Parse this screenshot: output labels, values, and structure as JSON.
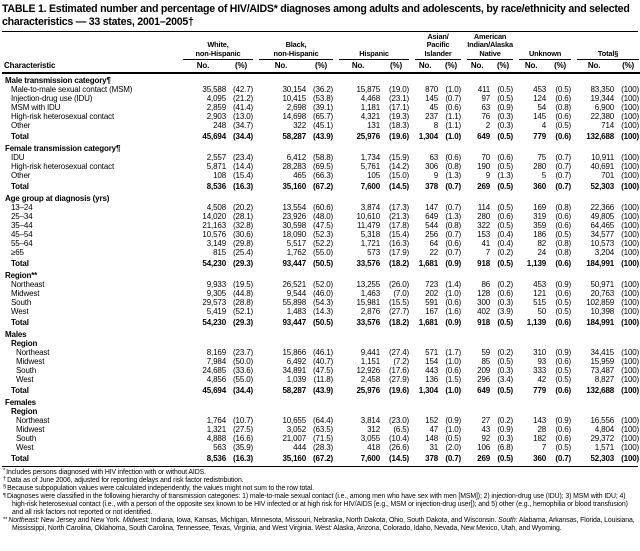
{
  "title": "TABLE 1. Estimated number and percentage of HIV/AIDS* diagnoses among adults and adolescents, by race/ethnicity and selected characteristics — 33 states, 2001–2005†",
  "columns": {
    "characteristic": "Characteristic",
    "sub_no": "No.",
    "sub_pct": "(%)",
    "groups": [
      "White,\nnon-Hispanic",
      "Black,\nnon-Hispanic",
      "Hispanic",
      "Asian/\nPacific\nIslander",
      "American\nIndian/Alaska\nNative",
      "Unknown",
      "Total§"
    ]
  },
  "rows": [
    {
      "label": "Male transmission category¶",
      "style": "sec",
      "indent": 0
    },
    {
      "label": "Male-to-male sexual contact (MSM)",
      "style": "item",
      "indent": 1,
      "cells": [
        "35,588",
        "(42.7)",
        "30,154",
        "(36.2)",
        "15,875",
        "(19.0)",
        "870",
        "(1.0)",
        "411",
        "(0.5)",
        "453",
        "(0.5)",
        "83,350",
        "(100)"
      ]
    },
    {
      "label": "Injection-drug use (IDU)",
      "style": "item",
      "indent": 1,
      "cells": [
        "4,095",
        "(21.2)",
        "10,415",
        "(53.8)",
        "4,468",
        "(23.1)",
        "145",
        "(0.7)",
        "97",
        "(0.5)",
        "124",
        "(0.6)",
        "19,344",
        "(100)"
      ]
    },
    {
      "label": "MSM with IDU",
      "style": "item",
      "indent": 1,
      "cells": [
        "2,859",
        "(41.4)",
        "2,698",
        "(39.1)",
        "1,181",
        "(17.1)",
        "45",
        "(0.6)",
        "63",
        "(0.9)",
        "54",
        "(0.8)",
        "6,900",
        "(100)"
      ]
    },
    {
      "label": "High-risk heterosexual contact",
      "style": "item",
      "indent": 1,
      "cells": [
        "2,903",
        "(13.0)",
        "14,698",
        "(65.7)",
        "4,321",
        "(19.3)",
        "237",
        "(1.1)",
        "76",
        "(0.3)",
        "145",
        "(0.6)",
        "22,380",
        "(100)"
      ]
    },
    {
      "label": "Other",
      "style": "item",
      "indent": 1,
      "cells": [
        "248",
        "(34.7)",
        "322",
        "(45.1)",
        "131",
        "(18.3)",
        "8",
        "(1.1)",
        "2",
        "(0.3)",
        "4",
        "(0.5)",
        "714",
        "(100)"
      ]
    },
    {
      "label": "Total",
      "style": "tot",
      "indent": 1,
      "cells": [
        "45,694",
        "(34.4)",
        "58,287",
        "(43.9)",
        "25,976",
        "(19.6)",
        "1,304",
        "(1.0)",
        "649",
        "(0.5)",
        "779",
        "(0.6)",
        "132,688",
        "(100)"
      ]
    },
    {
      "label": "Female transmission category¶",
      "style": "sec",
      "indent": 0
    },
    {
      "label": "IDU",
      "style": "item",
      "indent": 1,
      "cells": [
        "2,557",
        "(23.4)",
        "6,412",
        "(58.8)",
        "1,734",
        "(15.9)",
        "63",
        "(0.6)",
        "70",
        "(0.6)",
        "75",
        "(0.7)",
        "10,911",
        "(100)"
      ]
    },
    {
      "label": "High-risk heterosexual contact",
      "style": "item",
      "indent": 1,
      "cells": [
        "5,871",
        "(14.4)",
        "28,283",
        "(69.5)",
        "5,761",
        "(14.2)",
        "306",
        "(0.8)",
        "190",
        "(0.5)",
        "280",
        "(0.7)",
        "40,691",
        "(100)"
      ]
    },
    {
      "label": "Other",
      "style": "item",
      "indent": 1,
      "cells": [
        "108",
        "(15.4)",
        "465",
        "(66.3)",
        "105",
        "(15.0)",
        "9",
        "(1.3)",
        "9",
        "(1.3)",
        "5",
        "(0.7)",
        "701",
        "(100)"
      ]
    },
    {
      "label": "Total",
      "style": "tot",
      "indent": 1,
      "cells": [
        "8,536",
        "(16.3)",
        "35,160",
        "(67.2)",
        "7,600",
        "(14.5)",
        "378",
        "(0.7)",
        "269",
        "(0.5)",
        "360",
        "(0.7)",
        "52,303",
        "(100)"
      ]
    },
    {
      "label": "Age group at diagnosis (yrs)",
      "style": "sec",
      "indent": 0
    },
    {
      "label": "13–24",
      "style": "item",
      "indent": 1,
      "cells": [
        "4,508",
        "(20.2)",
        "13,554",
        "(60.6)",
        "3,874",
        "(17.3)",
        "147",
        "(0.7)",
        "114",
        "(0.5)",
        "169",
        "(0.8)",
        "22,366",
        "(100)"
      ]
    },
    {
      "label": "25–34",
      "style": "item",
      "indent": 1,
      "cells": [
        "14,020",
        "(28.1)",
        "23,926",
        "(48.0)",
        "10,610",
        "(21.3)",
        "649",
        "(1.3)",
        "280",
        "(0.6)",
        "319",
        "(0.6)",
        "49,805",
        "(100)"
      ]
    },
    {
      "label": "35–44",
      "style": "item",
      "indent": 1,
      "cells": [
        "21,163",
        "(32.8)",
        "30,598",
        "(47.5)",
        "11,479",
        "(17.8)",
        "544",
        "(0.8)",
        "322",
        "(0.5)",
        "359",
        "(0.6)",
        "64,465",
        "(100)"
      ]
    },
    {
      "label": "45–54",
      "style": "item",
      "indent": 1,
      "cells": [
        "10,576",
        "(30.6)",
        "18,090",
        "(52.3)",
        "5,318",
        "(15.4)",
        "256",
        "(0.7)",
        "153",
        "(0.4)",
        "186",
        "(0.5)",
        "34,577",
        "(100)"
      ]
    },
    {
      "label": "55–64",
      "style": "item",
      "indent": 1,
      "cells": [
        "3,149",
        "(29.8)",
        "5,517",
        "(52.2)",
        "1,721",
        "(16.3)",
        "64",
        "(0.6)",
        "41",
        "(0.4)",
        "82",
        "(0.8)",
        "10,573",
        "(100)"
      ]
    },
    {
      "label": "≥65",
      "style": "item",
      "indent": 1,
      "cells": [
        "815",
        "(25.4)",
        "1,762",
        "(55.0)",
        "573",
        "(17.9)",
        "22",
        "(0.7)",
        "7",
        "(0.2)",
        "24",
        "(0.8)",
        "3,204",
        "(100)"
      ]
    },
    {
      "label": "Total",
      "style": "tot",
      "indent": 1,
      "cells": [
        "54,230",
        "(29.3)",
        "93,447",
        "(50.5)",
        "33,576",
        "(18.2)",
        "1,681",
        "(0.9)",
        "918",
        "(0.5)",
        "1,139",
        "(0.6)",
        "184,991",
        "(100)"
      ]
    },
    {
      "label": "Region**",
      "style": "sec",
      "indent": 0
    },
    {
      "label": "Northeast",
      "style": "item",
      "indent": 1,
      "cells": [
        "9,933",
        "(19.5)",
        "26,521",
        "(52.0)",
        "13,255",
        "(26.0)",
        "723",
        "(1.4)",
        "86",
        "(0.2)",
        "453",
        "(0.9)",
        "50,971",
        "(100)"
      ]
    },
    {
      "label": "Midwest",
      "style": "item",
      "indent": 1,
      "cells": [
        "9,305",
        "(44.8)",
        "9,544",
        "(46.0)",
        "1,463",
        "(7.0)",
        "202",
        "(1.0)",
        "128",
        "(0.6)",
        "121",
        "(0.6)",
        "20,763",
        "(100)"
      ]
    },
    {
      "label": "South",
      "style": "item",
      "indent": 1,
      "cells": [
        "29,573",
        "(28.8)",
        "55,898",
        "(54.3)",
        "15,981",
        "(15.5)",
        "591",
        "(0.6)",
        "300",
        "(0.3)",
        "515",
        "(0.5)",
        "102,859",
        "(100)"
      ]
    },
    {
      "label": "West",
      "style": "item",
      "indent": 1,
      "cells": [
        "5,419",
        "(52.1)",
        "1,483",
        "(14.3)",
        "2,876",
        "(27.7)",
        "167",
        "(1.6)",
        "402",
        "(3.9)",
        "50",
        "(0.5)",
        "10,398",
        "(100)"
      ]
    },
    {
      "label": "Total",
      "style": "tot",
      "indent": 1,
      "cells": [
        "54,230",
        "(29.3)",
        "93,447",
        "(50.5)",
        "33,576",
        "(18.2)",
        "1,681",
        "(0.9)",
        "918",
        "(0.5)",
        "1,139",
        "(0.6)",
        "184,991",
        "(100)"
      ]
    },
    {
      "label": "Males",
      "style": "sec",
      "indent": 0
    },
    {
      "label": "Region",
      "style": "subsec",
      "indent": 1
    },
    {
      "label": "Northeast",
      "style": "item",
      "indent": 2,
      "cells": [
        "8,169",
        "(23.7)",
        "15,866",
        "(46.1)",
        "9,441",
        "(27.4)",
        "571",
        "(1.7)",
        "59",
        "(0.2)",
        "310",
        "(0.9)",
        "34,415",
        "(100)"
      ]
    },
    {
      "label": "Midwest",
      "style": "item",
      "indent": 2,
      "cells": [
        "7,984",
        "(50.0)",
        "6,492",
        "(40.7)",
        "1,151",
        "(7.2)",
        "154",
        "(1.0)",
        "85",
        "(0.5)",
        "93",
        "(0.6)",
        "15,959",
        "(100)"
      ]
    },
    {
      "label": "South",
      "style": "item",
      "indent": 2,
      "cells": [
        "24,685",
        "(33.6)",
        "34,891",
        "(47.5)",
        "12,926",
        "(17.6)",
        "443",
        "(0.6)",
        "209",
        "(0.3)",
        "333",
        "(0.5)",
        "73,487",
        "(100)"
      ]
    },
    {
      "label": "West",
      "style": "item",
      "indent": 2,
      "cells": [
        "4,856",
        "(55.0)",
        "1,039",
        "(11.8)",
        "2,458",
        "(27.9)",
        "136",
        "(1.5)",
        "296",
        "(3.4)",
        "42",
        "(0.5)",
        "8,827",
        "(100)"
      ]
    },
    {
      "label": "Total",
      "style": "tot",
      "indent": 1,
      "cells": [
        "45,694",
        "(34.4)",
        "58,287",
        "(43.9)",
        "25,976",
        "(19.6)",
        "1,304",
        "(1.0)",
        "649",
        "(0.5)",
        "779",
        "(0.6)",
        "132,688",
        "(100)"
      ]
    },
    {
      "label": "Females",
      "style": "sec",
      "indent": 0
    },
    {
      "label": "Region",
      "style": "subsec",
      "indent": 1
    },
    {
      "label": "Northeast",
      "style": "item",
      "indent": 2,
      "cells": [
        "1,764",
        "(10.7)",
        "10,655",
        "(64.4)",
        "3,814",
        "(23.0)",
        "152",
        "(0.9)",
        "27",
        "(0.2)",
        "143",
        "(0.9)",
        "16,556",
        "(100)"
      ]
    },
    {
      "label": "Midwest",
      "style": "item",
      "indent": 2,
      "cells": [
        "1,321",
        "(27.5)",
        "3,052",
        "(63.5)",
        "312",
        "(6.5)",
        "47",
        "(1.0)",
        "43",
        "(0.9)",
        "28",
        "(0.6)",
        "4,804",
        "(100)"
      ]
    },
    {
      "label": "South",
      "style": "item",
      "indent": 2,
      "cells": [
        "4,888",
        "(16.6)",
        "21,007",
        "(71.5)",
        "3,055",
        "(10.4)",
        "148",
        "(0.5)",
        "92",
        "(0.3)",
        "182",
        "(0.6)",
        "29,372",
        "(100)"
      ]
    },
    {
      "label": "West",
      "style": "item",
      "indent": 2,
      "cells": [
        "563",
        "(35.9)",
        "444",
        "(28.3)",
        "418",
        "(26.6)",
        "31",
        "(2.0)",
        "106",
        "(6.8)",
        "7",
        "(0.5)",
        "1,571",
        "(100)"
      ]
    },
    {
      "label": "Total",
      "style": "tot",
      "indent": 1,
      "cells": [
        "8,536",
        "(16.3)",
        "35,160",
        "(67.2)",
        "7,600",
        "(14.5)",
        "378",
        "(0.7)",
        "269",
        "(0.5)",
        "360",
        "(0.7)",
        "52,303",
        "(100)"
      ]
    }
  ],
  "footnotes": [
    {
      "marker": "*",
      "segments": [
        {
          "t": "Includes persons diagnosed with HIV infection with or without AIDS.",
          "i": false
        }
      ]
    },
    {
      "marker": "†",
      "segments": [
        {
          "t": "Data as of June 2006, adjusted for reporting delays and risk factor redistribution.",
          "i": false
        }
      ]
    },
    {
      "marker": "§",
      "segments": [
        {
          "t": "Because subpopulation values were calculated independently, the values might not sum to the row total.",
          "i": false
        }
      ]
    },
    {
      "marker": "¶",
      "segments": [
        {
          "t": "Diagnoses were classified in the following hierarchy of transmission categories: 1) male-to-male sexual contact (i.e., among men who have sex with men [MSM]); 2) injection-drug use (IDU); 3) MSM with IDU; 4) high-risk heterosexual contact (i.e., with a person of the opposite sex known to be HIV infected or at high risk for HIV/AIDS [e.g., MSM or injection-drug user]); and 5) other (e.g., hemophilia or blood transfusion) and all risk factors not reported or not identified.",
          "i": false
        }
      ]
    },
    {
      "marker": "**",
      "segments": [
        {
          "t": "Northeast:",
          "i": true
        },
        {
          "t": " New Jersey and New York. ",
          "i": false
        },
        {
          "t": "Midwest:",
          "i": true
        },
        {
          "t": " Indiana, Iowa, Kansas, Michigan, Minnesota, Missouri, Nebraska, North Dakota, Ohio, South Dakota, and Wisconsin. ",
          "i": false
        },
        {
          "t": "South:",
          "i": true
        },
        {
          "t": " Alabama, Arkansas, Florida, Louisiana, Mississippi, North Carolina, Oklahoma, South Carolina, Tennessee, Texas, Virginia, and West Virginia. ",
          "i": false
        },
        {
          "t": "West:",
          "i": true
        },
        {
          "t": " Alaska, Arizona, Colorado, Idaho, Nevada, New Mexico, Utah, and Wyoming.",
          "i": false
        }
      ]
    }
  ]
}
